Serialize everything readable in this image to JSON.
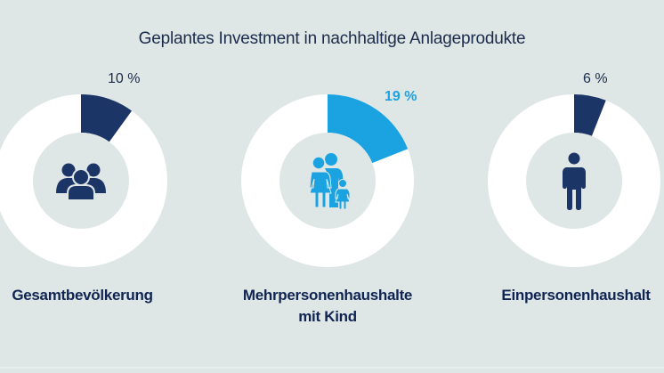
{
  "chart_data": {
    "type": "pie",
    "variant": "donut",
    "title": "Geplantes Investment in nachhaltige Anlageprodukte",
    "series": [
      {
        "name": "Gesamtbevölkerung",
        "value_label": "10 %",
        "value": 10,
        "color": "#1c3567",
        "icon": "group-people-icon",
        "highlight": false
      },
      {
        "name_lines": [
          "Mehrpersonenhaushalte",
          "mit Kind"
        ],
        "name": "Mehrpersonenhaushalte mit Kind",
        "value_label": "19 %",
        "value": 19,
        "color": "#1aa3e0",
        "icon": "family-icon",
        "highlight": true
      },
      {
        "name": "Einpersonenhaushalt",
        "value_label": "6 %",
        "value": 6,
        "color": "#1c3567",
        "icon": "single-person-icon",
        "highlight": false
      }
    ],
    "max": 100
  },
  "colors": {
    "background": "#dfe7e6",
    "ring": "#ffffff",
    "inner": "#dfe7e6",
    "navy": "#1c3567",
    "accent": "#1aa3e0"
  }
}
